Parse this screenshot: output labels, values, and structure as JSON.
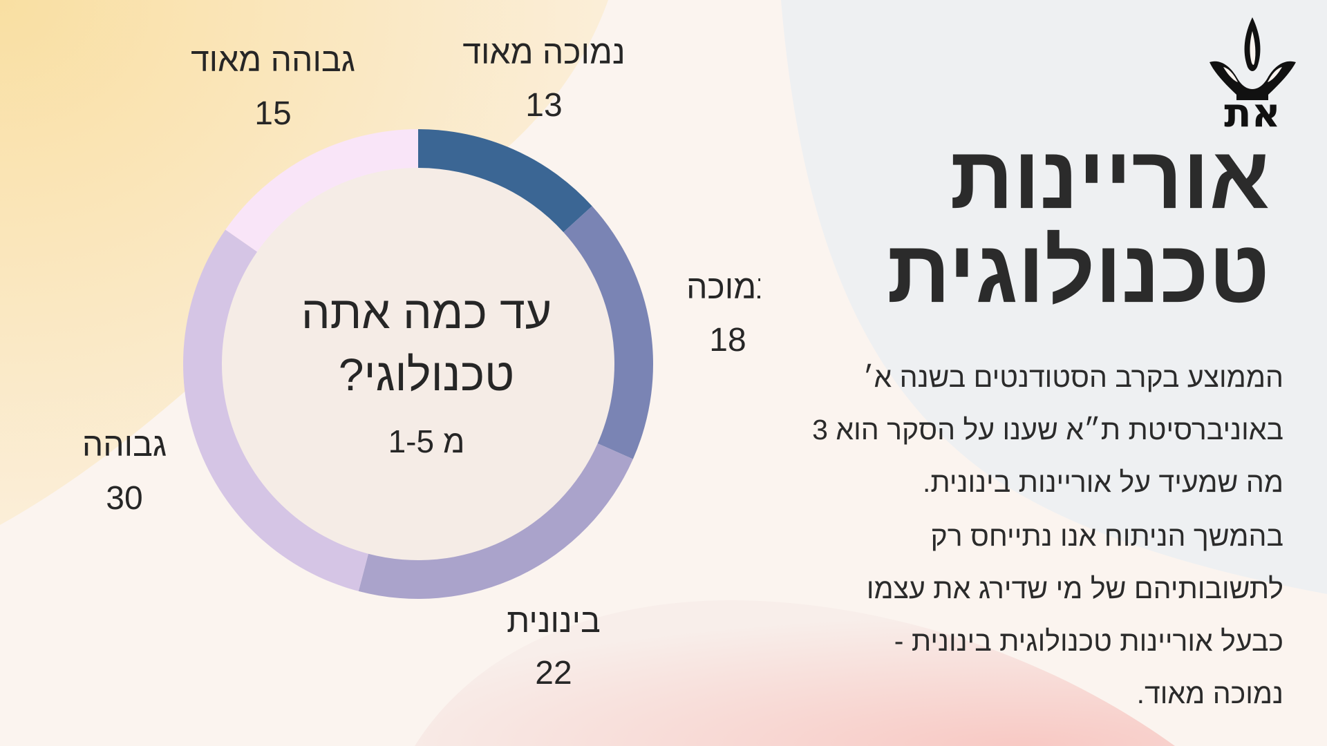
{
  "colors": {
    "background": "#fbf4ef",
    "title": "#2b2b2b",
    "series": [
      "#3b6694",
      "#7a84b4",
      "#aaa3cb",
      "#d5c5e5",
      "#f9e5f8"
    ]
  },
  "logo": {
    "icon": "tau-logo-icon",
    "text": "את"
  },
  "title": {
    "line1": "אוריינות",
    "line2": "טכנולוגית"
  },
  "body": {
    "para1_line1": "הממוצע בקרב הסטודנטים בשנה א׳",
    "para1_line2": "באוניברסיטת ת״א שענו על הסקר הוא 3",
    "para1_line3": "מה שמעיד על אוריינות בינונית.",
    "para2_line1": "בהמשך הניתוח אנו נתייחס רק",
    "para2_line2": "לתשובותיהם של מי שדירג את עצמו",
    "para2_line3": "כבעל אוריינות טכנולוגית בינונית -",
    "para2_line4": "נמוכה מאוד."
  },
  "chart_data": {
    "type": "pie",
    "style": "donut",
    "center_text": {
      "line1": "עד כמה אתה",
      "line2": "טכנולוגי?",
      "line3": "מ 1-5"
    },
    "categories": [
      "נמוכה מאוד",
      "נמוכה",
      "בינונית",
      "גבוהה",
      "גבוהה מאוד"
    ],
    "values": [
      13,
      18,
      22,
      30,
      15
    ],
    "colors": [
      "#3b6694",
      "#7a84b4",
      "#aaa3cb",
      "#d5c5e5",
      "#f9e5f8"
    ],
    "legend": "none"
  }
}
